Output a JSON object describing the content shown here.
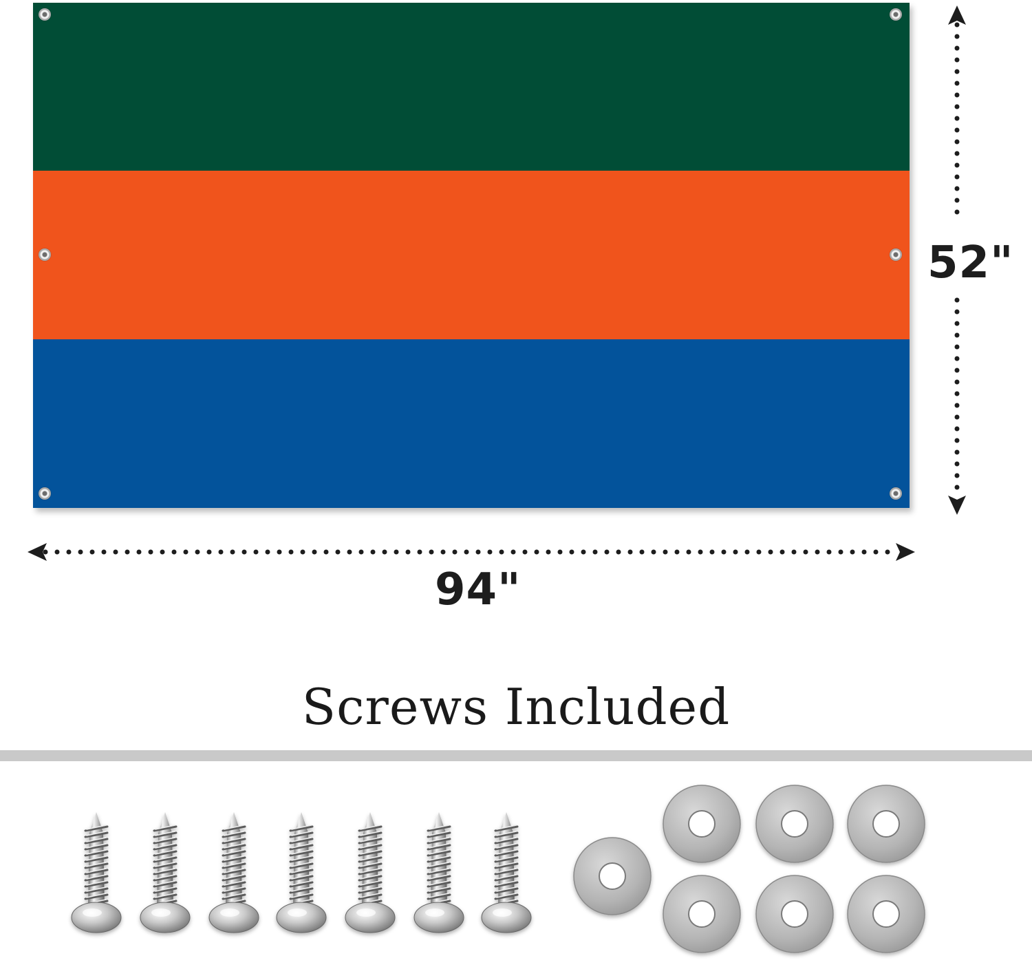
{
  "flag": {
    "stripes": [
      {
        "name": "top",
        "color": "#014d36"
      },
      {
        "name": "middle",
        "color": "#f0541c"
      },
      {
        "name": "bottom",
        "color": "#03539b"
      }
    ]
  },
  "dimensions": {
    "width_label": "94\"",
    "height_label": "52\""
  },
  "hardware": {
    "title": "Screws Included",
    "screw_count": 7,
    "washer_count": 7
  },
  "colors": {
    "divider": "#c9c9c9",
    "dimension_text": "#1d1d1d",
    "dotted_line": "#1d1d1d"
  }
}
